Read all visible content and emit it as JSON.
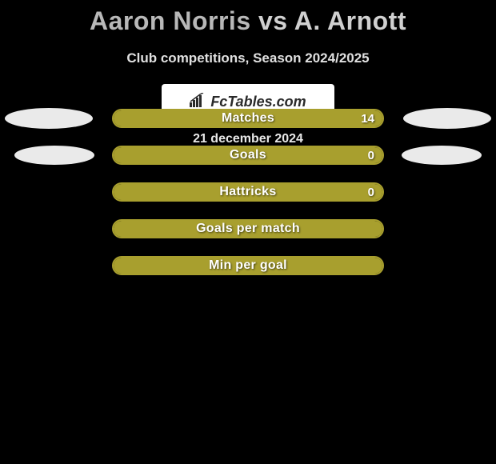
{
  "title": {
    "player1": "Aaron Norris",
    "vs": "vs",
    "player2": "A. Arnott"
  },
  "subtitle": "Club competitions, Season 2024/2025",
  "bar_color": "#a89f2e",
  "label_text_color": "#ffffff",
  "background_color": "#000000",
  "ellipse_color": "#eaeaea",
  "bar_outer_width": 340,
  "rows": [
    {
      "label": "Matches",
      "value": "14",
      "fill_pct": 100,
      "show_value": true,
      "show_ellipses": true,
      "ellipse_small": false
    },
    {
      "label": "Goals",
      "value": "0",
      "fill_pct": 100,
      "show_value": true,
      "show_ellipses": true,
      "ellipse_small": true
    },
    {
      "label": "Hattricks",
      "value": "0",
      "fill_pct": 100,
      "show_value": true,
      "show_ellipses": false,
      "ellipse_small": false
    },
    {
      "label": "Goals per match",
      "value": "",
      "fill_pct": 100,
      "show_value": false,
      "show_ellipses": false,
      "ellipse_small": false
    },
    {
      "label": "Min per goal",
      "value": "",
      "fill_pct": 100,
      "show_value": false,
      "show_ellipses": false,
      "ellipse_small": false
    }
  ],
  "logo": {
    "text": "FcTables.com"
  },
  "date": "21 december 2024"
}
